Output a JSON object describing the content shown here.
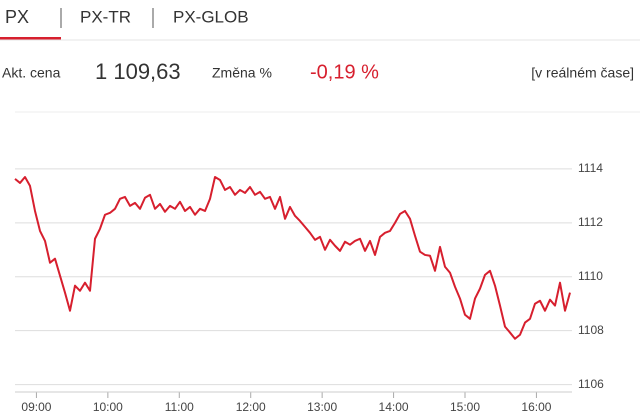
{
  "tabs": [
    "PX",
    "PX-TR",
    "PX-GLOB"
  ],
  "quote": {
    "price_label": "Akt. cena",
    "price": "1 109,63",
    "change_label": "Změna %",
    "change": "-0,19 %",
    "realtime": "[v reálném čase]"
  },
  "chart_data": {
    "type": "line",
    "color": "#d71f2e",
    "grid": true,
    "xlim": [
      8.7,
      16.47
    ],
    "ylim": [
      1105.8,
      1116
    ],
    "xticks": [
      {
        "value": 9,
        "label": "09:00"
      },
      {
        "value": 10,
        "label": "10:00"
      },
      {
        "value": 11,
        "label": "11:00"
      },
      {
        "value": 12,
        "label": "12:00"
      },
      {
        "value": 13,
        "label": "13:00"
      },
      {
        "value": 14,
        "label": "14:00"
      },
      {
        "value": 15,
        "label": "15:00"
      },
      {
        "value": 16,
        "label": "16:00"
      }
    ],
    "yticks": [
      1106,
      1108,
      1110,
      1112,
      1114
    ],
    "x": [
      8.7,
      8.77,
      8.84,
      8.91,
      8.98,
      9.05,
      9.12,
      9.19,
      9.26,
      9.33,
      9.4,
      9.47,
      9.54,
      9.61,
      9.68,
      9.75,
      9.82,
      9.89,
      9.96,
      10.03,
      10.1,
      10.17,
      10.24,
      10.31,
      10.38,
      10.45,
      10.52,
      10.59,
      10.66,
      10.73,
      10.8,
      10.87,
      10.94,
      11.01,
      11.08,
      11.15,
      11.22,
      11.29,
      11.36,
      11.43,
      11.5,
      11.57,
      11.64,
      11.71,
      11.78,
      11.85,
      11.92,
      11.99,
      12.06,
      12.13,
      12.2,
      12.27,
      12.34,
      12.41,
      12.48,
      12.55,
      12.62,
      12.69,
      12.76,
      12.83,
      12.9,
      12.97,
      13.04,
      13.11,
      13.18,
      13.25,
      13.32,
      13.39,
      13.46,
      13.53,
      13.6,
      13.67,
      13.74,
      13.81,
      13.88,
      13.95,
      14.02,
      14.09,
      14.16,
      14.23,
      14.3,
      14.37,
      14.44,
      14.51,
      14.58,
      14.65,
      14.72,
      14.79,
      14.86,
      14.93,
      15.0,
      15.07,
      15.14,
      15.21,
      15.28,
      15.35,
      15.42,
      15.49,
      15.56,
      15.63,
      15.7,
      15.77,
      15.84,
      15.91,
      15.98,
      16.05,
      16.12,
      16.19,
      16.26,
      16.33,
      16.4,
      16.47
    ],
    "values": [
      1113.63,
      1113.48,
      1113.7,
      1113.37,
      1112.44,
      1111.7,
      1111.33,
      1110.52,
      1110.67,
      1110.04,
      1109.41,
      1108.74,
      1109.67,
      1109.48,
      1109.78,
      1109.48,
      1111.41,
      1111.78,
      1112.3,
      1112.37,
      1112.52,
      1112.89,
      1112.96,
      1112.63,
      1112.74,
      1112.52,
      1112.93,
      1113.04,
      1112.52,
      1112.7,
      1112.41,
      1112.63,
      1112.52,
      1112.78,
      1112.44,
      1112.59,
      1112.3,
      1112.52,
      1112.44,
      1112.89,
      1113.7,
      1113.59,
      1113.22,
      1113.33,
      1113.04,
      1113.22,
      1113.11,
      1113.33,
      1113.04,
      1113.15,
      1112.89,
      1112.96,
      1112.52,
      1112.96,
      1112.15,
      1112.59,
      1112.26,
      1112.07,
      1111.85,
      1111.63,
      1111.37,
      1111.48,
      1111.0,
      1111.37,
      1111.15,
      1110.96,
      1111.3,
      1111.19,
      1111.33,
      1111.41,
      1110.96,
      1111.33,
      1110.81,
      1111.48,
      1111.63,
      1111.7,
      1112.0,
      1112.33,
      1112.44,
      1112.15,
      1111.52,
      1110.93,
      1110.81,
      1110.78,
      1110.22,
      1111.11,
      1110.37,
      1110.15,
      1109.63,
      1109.19,
      1108.59,
      1108.44,
      1109.19,
      1109.56,
      1110.07,
      1110.22,
      1109.67,
      1108.93,
      1108.15,
      1107.93,
      1107.7,
      1107.85,
      1108.3,
      1108.44,
      1109.0,
      1109.11,
      1108.74,
      1109.15,
      1108.93,
      1109.78,
      1108.74,
      1109.41
    ]
  }
}
